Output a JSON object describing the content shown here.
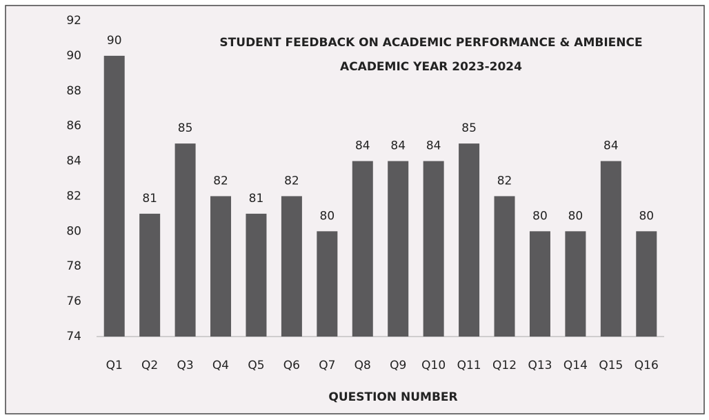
{
  "chart_data": {
    "type": "bar",
    "title": "STUDENT FEEDBACK ON ACADEMIC PERFORMANCE & AMBIENCE",
    "subtitle": "ACADEMIC YEAR 2023-2024",
    "x_label": "QUESTION NUMBER",
    "categories": [
      "Q1",
      "Q2",
      "Q3",
      "Q4",
      "Q5",
      "Q6",
      "Q7",
      "Q8",
      "Q9",
      "Q10",
      "Q11",
      "Q12",
      "Q13",
      "Q14",
      "Q15",
      "Q16"
    ],
    "values": [
      90,
      81,
      85,
      82,
      81,
      82,
      80,
      84,
      84,
      84,
      85,
      82,
      80,
      80,
      84,
      80
    ],
    "color": "#5b5a5c",
    "ylim": [
      74,
      92
    ],
    "yticks": [
      74,
      76,
      78,
      80,
      82,
      84,
      86,
      88,
      90,
      92
    ],
    "grid": false
  }
}
